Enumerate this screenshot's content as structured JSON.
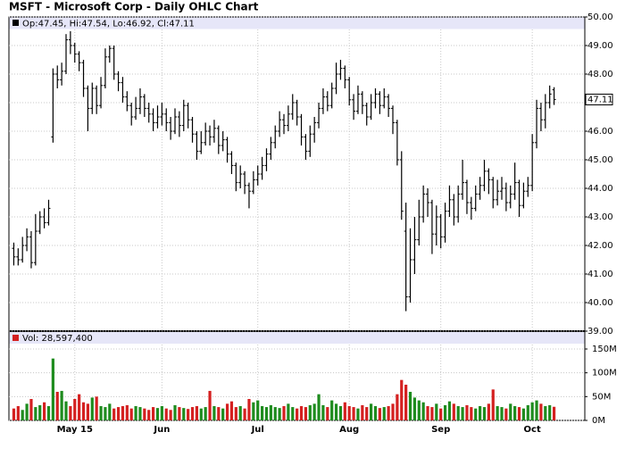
{
  "chart_data": {
    "type": "ohlc",
    "title": "MSFT - Microsoft Corp - Daily OHLC Chart",
    "ohlc_header": "Op:47.45, Hi:47.54, Lo:46.92, Cl:47.11",
    "volume_header": "Vol: 28,597,400",
    "last_label": "47.11",
    "categories": [
      null,
      null,
      null,
      null,
      null,
      null,
      null,
      null,
      null,
      null,
      null,
      null,
      null,
      null,
      "May 15",
      null,
      null,
      null,
      null,
      null,
      null,
      null,
      null,
      null,
      null,
      null,
      null,
      null,
      null,
      null,
      null,
      null,
      null,
      null,
      "Jun",
      null,
      null,
      null,
      null,
      null,
      null,
      null,
      null,
      null,
      null,
      null,
      null,
      null,
      null,
      null,
      null,
      null,
      null,
      null,
      null,
      null,
      "Jul",
      null,
      null,
      null,
      null,
      null,
      null,
      null,
      null,
      null,
      null,
      null,
      null,
      null,
      null,
      null,
      null,
      null,
      null,
      null,
      null,
      "Aug",
      null,
      null,
      null,
      null,
      null,
      null,
      null,
      null,
      null,
      null,
      null,
      null,
      null,
      null,
      null,
      null,
      null,
      null,
      null,
      null,
      "Sep",
      null,
      null,
      null,
      null,
      null,
      null,
      null,
      null,
      null,
      null,
      null,
      null,
      null,
      null,
      null,
      null,
      null,
      null,
      null,
      null,
      "Oct",
      null,
      null,
      null,
      null,
      null
    ],
    "open": [
      41.9,
      41.6,
      41.5,
      42.0,
      42.3,
      41.4,
      42.5,
      43.0,
      42.8,
      45.8,
      48.0,
      47.8,
      48.1,
      49.2,
      49.0,
      48.7,
      48.4,
      47.5,
      46.8,
      47.5,
      46.9,
      47.6,
      48.6,
      48.9,
      48.0,
      47.7,
      47.2,
      46.9,
      46.5,
      46.8,
      47.2,
      46.8,
      46.6,
      46.3,
      46.5,
      46.6,
      46.3,
      46.0,
      46.5,
      46.2,
      46.9,
      46.4,
      45.9,
      45.3,
      45.6,
      46.0,
      45.8,
      46.1,
      45.5,
      45.7,
      45.2,
      44.8,
      44.2,
      44.5,
      44.1,
      43.9,
      44.3,
      44.5,
      44.8,
      45.2,
      45.6,
      46.0,
      46.4,
      46.2,
      46.6,
      47.0,
      46.5,
      45.8,
      45.3,
      45.9,
      46.3,
      46.8,
      47.2,
      46.9,
      47.5,
      48.0,
      48.2,
      47.8,
      47.1,
      46.7,
      47.3,
      46.9,
      46.5,
      47.0,
      47.3,
      46.9,
      47.2,
      46.8,
      46.3,
      45.0,
      42.5,
      40.2,
      41.5,
      42.2,
      43.0,
      43.8,
      43.5,
      42.4,
      43.0,
      42.3,
      43.2,
      43.6,
      43.0,
      43.8,
      44.2,
      43.5,
      43.3,
      43.8,
      44.1,
      44.6,
      44.3,
      43.6,
      43.9,
      44.0,
      43.5,
      43.8,
      44.2,
      43.4,
      43.9,
      44.1,
      45.6,
      46.8,
      46.4,
      47.0,
      47.45
    ],
    "high": [
      42.1,
      41.9,
      42.3,
      42.6,
      42.5,
      43.1,
      43.2,
      43.3,
      43.6,
      48.2,
      48.3,
      48.4,
      49.4,
      49.5,
      49.1,
      48.8,
      48.5,
      47.6,
      47.7,
      47.6,
      47.9,
      48.9,
      49.0,
      49.0,
      48.1,
      47.9,
      47.4,
      47.0,
      47.2,
      47.5,
      47.3,
      47.0,
      46.8,
      46.9,
      47.0,
      46.8,
      46.5,
      46.8,
      46.7,
      47.1,
      47.0,
      46.5,
      46.0,
      46.0,
      46.3,
      46.2,
      46.4,
      46.2,
      46.0,
      45.8,
      45.3,
      44.9,
      44.8,
      44.6,
      44.2,
      44.6,
      44.8,
      45.1,
      45.4,
      45.8,
      46.2,
      46.7,
      46.6,
      46.9,
      47.3,
      47.1,
      46.6,
      45.9,
      46.2,
      46.5,
      47.0,
      47.5,
      47.4,
      47.7,
      48.4,
      48.5,
      48.3,
      47.9,
      47.3,
      47.6,
      47.4,
      47.0,
      47.3,
      47.5,
      47.4,
      47.5,
      47.3,
      46.9,
      46.4,
      45.3,
      43.5,
      42.6,
      43.0,
      43.6,
      44.1,
      44.0,
      43.6,
      43.4,
      43.1,
      43.5,
      44.1,
      43.8,
      44.1,
      45.0,
      44.3,
      43.7,
      44.1,
      44.4,
      45.0,
      44.7,
      44.4,
      44.3,
      44.4,
      44.2,
      44.1,
      44.9,
      44.3,
      44.2,
      44.4,
      45.9,
      47.1,
      47.0,
      47.3,
      47.6,
      47.54
    ],
    "low": [
      41.3,
      41.3,
      41.4,
      41.8,
      41.2,
      41.3,
      42.4,
      42.6,
      42.7,
      45.6,
      47.5,
      47.6,
      48.0,
      48.7,
      48.4,
      48.1,
      47.2,
      46.0,
      46.6,
      46.6,
      46.8,
      47.5,
      48.4,
      47.8,
      47.4,
      47.0,
      46.7,
      46.2,
      46.4,
      46.6,
      46.5,
      46.3,
      46.0,
      46.1,
      46.2,
      46.0,
      45.7,
      45.9,
      45.8,
      46.0,
      46.1,
      45.6,
      45.0,
      45.2,
      45.5,
      45.5,
      45.6,
      45.2,
      45.3,
      44.9,
      44.5,
      43.9,
      44.0,
      43.8,
      43.3,
      43.8,
      44.1,
      44.3,
      44.6,
      45.0,
      45.4,
      45.8,
      45.9,
      46.0,
      46.4,
      46.2,
      45.5,
      45.0,
      45.1,
      45.6,
      46.1,
      46.6,
      46.7,
      46.8,
      47.3,
      47.8,
      47.5,
      46.9,
      46.4,
      46.6,
      46.6,
      46.2,
      46.4,
      46.8,
      46.6,
      46.8,
      46.5,
      45.9,
      44.8,
      42.9,
      39.7,
      40.0,
      41.0,
      42.0,
      42.8,
      43.0,
      41.7,
      42.0,
      41.9,
      42.1,
      43.0,
      42.7,
      42.8,
      43.6,
      43.1,
      42.9,
      43.2,
      43.6,
      43.9,
      43.8,
      43.3,
      43.4,
      43.6,
      43.2,
      43.3,
      43.6,
      43.0,
      43.3,
      43.7,
      43.9,
      45.4,
      46.0,
      46.1,
      46.8,
      46.92
    ],
    "close": [
      41.6,
      41.5,
      42.0,
      42.3,
      41.4,
      42.5,
      43.0,
      42.8,
      43.3,
      48.0,
      47.8,
      48.1,
      49.2,
      49.0,
      48.7,
      48.4,
      47.5,
      46.8,
      47.5,
      46.9,
      47.6,
      48.6,
      48.9,
      48.0,
      47.7,
      47.2,
      46.9,
      46.5,
      46.8,
      47.2,
      46.8,
      46.6,
      46.3,
      46.5,
      46.6,
      46.3,
      46.0,
      46.5,
      46.2,
      46.9,
      46.4,
      45.9,
      45.3,
      45.6,
      46.0,
      45.8,
      46.1,
      45.5,
      45.7,
      45.2,
      44.8,
      44.2,
      44.5,
      44.1,
      43.9,
      44.3,
      44.5,
      44.8,
      45.2,
      45.6,
      46.0,
      46.4,
      46.2,
      46.6,
      47.0,
      46.5,
      45.8,
      45.3,
      45.9,
      46.3,
      46.8,
      47.2,
      46.9,
      47.5,
      48.0,
      48.2,
      47.8,
      47.1,
      46.7,
      47.3,
      46.9,
      46.5,
      47.0,
      47.3,
      46.9,
      47.2,
      46.8,
      46.3,
      45.0,
      43.2,
      40.2,
      41.5,
      42.2,
      43.0,
      43.8,
      43.5,
      42.4,
      43.0,
      42.3,
      43.2,
      43.6,
      43.0,
      43.8,
      44.2,
      43.5,
      43.3,
      43.8,
      44.1,
      44.6,
      44.3,
      43.6,
      43.9,
      44.0,
      43.5,
      43.8,
      44.2,
      43.4,
      43.9,
      44.1,
      45.6,
      46.8,
      46.4,
      47.0,
      47.3,
      47.11
    ],
    "volume": [
      25,
      30,
      22,
      35,
      45,
      28,
      32,
      38,
      30,
      130,
      60,
      62,
      40,
      30,
      45,
      55,
      38,
      35,
      48,
      50,
      30,
      28,
      35,
      25,
      28,
      30,
      32,
      25,
      30,
      28,
      25,
      22,
      28,
      26,
      30,
      25,
      22,
      32,
      28,
      26,
      24,
      28,
      30,
      25,
      28,
      62,
      30,
      28,
      25,
      35,
      40,
      28,
      30,
      25,
      45,
      38,
      42,
      30,
      28,
      32,
      28,
      26,
      30,
      35,
      28,
      25,
      30,
      28,
      32,
      35,
      55,
      32,
      28,
      42,
      35,
      30,
      38,
      30,
      28,
      25,
      32,
      28,
      35,
      30,
      26,
      28,
      30,
      35,
      55,
      85,
      75,
      60,
      48,
      42,
      38,
      30,
      28,
      35,
      25,
      32,
      40,
      35,
      30,
      28,
      32,
      28,
      25,
      30,
      28,
      35,
      65,
      30,
      28,
      25,
      35,
      30,
      28,
      25,
      32,
      38,
      42,
      35,
      30,
      32,
      28.5974
    ],
    "ylim": [
      39,
      50
    ],
    "yticks": [
      {
        "value": 39,
        "label": "39.00"
      },
      {
        "value": 40,
        "label": "40.00"
      },
      {
        "value": 41,
        "label": "41.00"
      },
      {
        "value": 42,
        "label": "42.00"
      },
      {
        "value": 43,
        "label": "43.00"
      },
      {
        "value": 44,
        "label": "44.00"
      },
      {
        "value": 45,
        "label": "45.00"
      },
      {
        "value": 46,
        "label": "46.00"
      },
      {
        "value": 47,
        "label": "47.00"
      },
      {
        "value": 48,
        "label": "48.00"
      },
      {
        "value": 49,
        "label": "49.00"
      },
      {
        "value": 50,
        "label": "50.00"
      }
    ],
    "y2lim": [
      0,
      150
    ],
    "y2ticks": [
      {
        "value": 0,
        "label": "0M"
      },
      {
        "value": 50,
        "label": "50M"
      },
      {
        "value": 100,
        "label": "100M"
      },
      {
        "value": 150,
        "label": "150M"
      }
    ],
    "bar_color": "#000000",
    "up_color": "#1e8c1e",
    "down_color": "#d42020",
    "grid": true
  }
}
